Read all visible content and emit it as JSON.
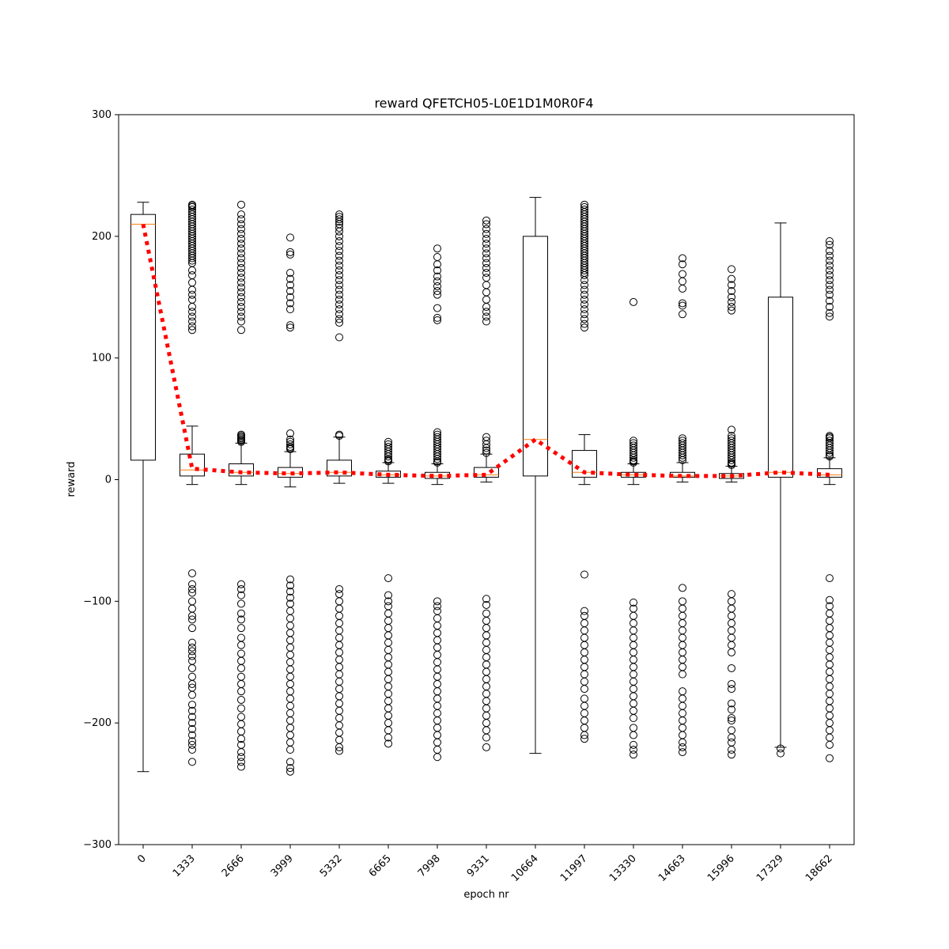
{
  "chart_data": {
    "type": "box",
    "title": "reward QFETCH05-L0E1D1M0R0F4",
    "xlabel": "epoch nr",
    "ylabel": "reward",
    "ylim": [
      -300,
      300
    ],
    "yticks": [
      -300,
      -200,
      -100,
      0,
      100,
      200,
      300
    ],
    "ytick_labels": [
      "−300",
      "−200",
      "−100",
      "0",
      "100",
      "200",
      "300"
    ],
    "categories": [
      "0",
      "1333",
      "2666",
      "3999",
      "5332",
      "6665",
      "7998",
      "9331",
      "10664",
      "11997",
      "13330",
      "14663",
      "15996",
      "17329",
      "18662"
    ],
    "x_tick_rotation": 45,
    "grid": false,
    "colors": {
      "box": "#000000",
      "median": "#ff7f0e",
      "mean_line": "#ff0000",
      "flier": "#000000"
    },
    "boxes": [
      {
        "q1": 16,
        "median": 210,
        "q3": 218,
        "whisker_low": -240,
        "whisker_high": 228,
        "mean": 210,
        "fliers": []
      },
      {
        "q1": 3,
        "median": 8,
        "q3": 21,
        "whisker_low": -4,
        "whisker_high": 44,
        "mean": 9,
        "fliers": [
          226,
          225,
          224,
          222,
          220,
          218,
          216,
          214,
          212,
          210,
          208,
          206,
          204,
          202,
          200,
          198,
          196,
          194,
          192,
          190,
          188,
          186,
          184,
          182,
          180,
          178,
          172,
          168,
          162,
          156,
          152,
          148,
          142,
          138,
          134,
          130,
          126,
          123,
          -77,
          -86,
          -90,
          -93,
          -100,
          -106,
          -112,
          -115,
          -122,
          -134,
          -138,
          -141,
          -145,
          -149,
          -155,
          -162,
          -168,
          -171,
          -177,
          -185,
          -190,
          -195,
          -200,
          -205,
          -210,
          -215,
          -218,
          -222,
          -232
        ]
      },
      {
        "q1": 3,
        "median": 6,
        "q3": 13,
        "whisker_low": -4,
        "whisker_high": 30,
        "mean": 6,
        "fliers": [
          37,
          36,
          35,
          34,
          33,
          32,
          31,
          226,
          218,
          214,
          210,
          206,
          202,
          198,
          194,
          190,
          186,
          182,
          178,
          174,
          170,
          166,
          162,
          158,
          154,
          150,
          146,
          142,
          138,
          134,
          130,
          123,
          -86,
          -90,
          -95,
          -102,
          -110,
          -115,
          -122,
          -130,
          -136,
          -143,
          -149,
          -155,
          -162,
          -168,
          -174,
          -181,
          -188,
          -195,
          -201,
          -207,
          -213,
          -218,
          -224,
          -228,
          -232,
          -236
        ]
      },
      {
        "q1": 2,
        "median": 5,
        "q3": 10,
        "whisker_low": -6,
        "whisker_high": 23,
        "mean": 5,
        "fliers": [
          38,
          33,
          31,
          29,
          27,
          26,
          25,
          199,
          187,
          185,
          170,
          165,
          160,
          155,
          150,
          145,
          140,
          127,
          125,
          -82,
          -87,
          -92,
          -97,
          -102,
          -108,
          -114,
          -120,
          -126,
          -132,
          -138,
          -144,
          -150,
          -156,
          -162,
          -168,
          -174,
          -180,
          -186,
          -192,
          -198,
          -204,
          -210,
          -216,
          -222,
          -232,
          -237,
          -240
        ]
      },
      {
        "q1": 3,
        "median": 6,
        "q3": 16,
        "whisker_low": -3,
        "whisker_high": 35,
        "mean": 6,
        "fliers": [
          37,
          36,
          218,
          216,
          214,
          212,
          210,
          207,
          204,
          200,
          196,
          192,
          188,
          184,
          180,
          176,
          172,
          168,
          164,
          160,
          156,
          152,
          148,
          144,
          140,
          136,
          132,
          129,
          117,
          -90,
          -94,
          -100,
          -106,
          -112,
          -118,
          -124,
          -130,
          -136,
          -142,
          -148,
          -154,
          -160,
          -166,
          -172,
          -178,
          -184,
          -190,
          -196,
          -202,
          -208,
          -214,
          -220,
          -223
        ]
      },
      {
        "q1": 2,
        "median": 4,
        "q3": 7,
        "whisker_low": -3,
        "whisker_high": 14,
        "mean": 4,
        "fliers": [
          31,
          29,
          27,
          25,
          23,
          21,
          19,
          17,
          16,
          15,
          -81,
          -95,
          -100,
          -104,
          -110,
          -116,
          -122,
          -128,
          -134,
          -140,
          -146,
          -152,
          -158,
          -164,
          -170,
          -176,
          -182,
          -188,
          -194,
          -200,
          -206,
          -212,
          -217
        ]
      },
      {
        "q1": 1,
        "median": 3,
        "q3": 6,
        "whisker_low": -4,
        "whisker_high": 13,
        "mean": 3,
        "fliers": [
          39,
          37,
          35,
          33,
          31,
          29,
          27,
          25,
          23,
          21,
          19,
          17,
          15,
          14,
          190,
          183,
          177,
          172,
          167,
          163,
          159,
          155,
          152,
          141,
          133,
          131,
          -100,
          -104,
          -108,
          -114,
          -120,
          -126,
          -132,
          -138,
          -144,
          -150,
          -156,
          -162,
          -168,
          -174,
          -180,
          -186,
          -192,
          -198,
          -204,
          -210,
          -216,
          -222,
          -228
        ]
      },
      {
        "q1": 2,
        "median": 4,
        "q3": 10,
        "whisker_low": -2,
        "whisker_high": 21,
        "mean": 4,
        "fliers": [
          35,
          32,
          29,
          26,
          24,
          22,
          213,
          210,
          206,
          202,
          198,
          194,
          190,
          186,
          182,
          178,
          174,
          170,
          166,
          160,
          154,
          148,
          142,
          138,
          134,
          130,
          -98,
          -103,
          -110,
          -116,
          -122,
          -128,
          -134,
          -140,
          -146,
          -152,
          -158,
          -164,
          -170,
          -176,
          -182,
          -188,
          -194,
          -200,
          -206,
          -212,
          -220
        ]
      },
      {
        "q1": 3,
        "median": 33,
        "q3": 200,
        "whisker_low": -225,
        "whisker_high": 232,
        "mean": 33,
        "fliers": []
      },
      {
        "q1": 2,
        "median": 6,
        "q3": 24,
        "whisker_low": -4,
        "whisker_high": 37,
        "mean": 6,
        "fliers": [
          226,
          224,
          222,
          220,
          218,
          216,
          214,
          212,
          210,
          208,
          206,
          204,
          202,
          200,
          198,
          196,
          194,
          192,
          190,
          188,
          186,
          184,
          182,
          180,
          178,
          176,
          174,
          172,
          170,
          168,
          164,
          160,
          156,
          152,
          148,
          144,
          140,
          136,
          132,
          128,
          125,
          -78,
          -108,
          -112,
          -118,
          -124,
          -130,
          -136,
          -142,
          -148,
          -154,
          -160,
          -166,
          -172,
          -180,
          -186,
          -192,
          -198,
          -204,
          -210,
          -213
        ]
      },
      {
        "q1": 2,
        "median": 4,
        "q3": 6,
        "whisker_low": -4,
        "whisker_high": 13,
        "mean": 4,
        "fliers": [
          32,
          30,
          28,
          26,
          24,
          22,
          20,
          18,
          16,
          15,
          14,
          146,
          -101,
          -106,
          -112,
          -118,
          -124,
          -130,
          -136,
          -142,
          -148,
          -154,
          -160,
          -166,
          -172,
          -178,
          -184,
          -190,
          -196,
          -204,
          -210,
          -218,
          -222,
          -226
        ]
      },
      {
        "q1": 2,
        "median": 3,
        "q3": 6,
        "whisker_low": -2,
        "whisker_high": 14,
        "mean": 3,
        "fliers": [
          34,
          32,
          30,
          28,
          26,
          24,
          22,
          20,
          18,
          16,
          182,
          177,
          169,
          163,
          157,
          145,
          143,
          136,
          -89,
          -100,
          -106,
          -112,
          -118,
          -124,
          -130,
          -136,
          -142,
          -148,
          -154,
          -160,
          -174,
          -180,
          -186,
          -192,
          -198,
          -204,
          -210,
          -216,
          -220,
          -224
        ]
      },
      {
        "q1": 1,
        "median": 3,
        "q3": 5,
        "whisker_low": -2,
        "whisker_high": 11,
        "mean": 3,
        "fliers": [
          41,
          36,
          34,
          32,
          30,
          28,
          26,
          24,
          22,
          20,
          18,
          16,
          14,
          13,
          12,
          173,
          165,
          160,
          155,
          150,
          146,
          142,
          139,
          -94,
          -100,
          -106,
          -112,
          -118,
          -124,
          -130,
          -136,
          -142,
          -155,
          -168,
          -172,
          -184,
          -189,
          -196,
          -198,
          -206,
          -212,
          -216,
          -222,
          -226
        ]
      },
      {
        "q1": 2,
        "median": 6,
        "q3": 150,
        "whisker_low": -220,
        "whisker_high": 211,
        "mean": 6,
        "fliers": [
          -221,
          -225
        ]
      },
      {
        "q1": 2,
        "median": 4,
        "q3": 9,
        "whisker_low": -4,
        "whisker_high": 18,
        "mean": 4,
        "fliers": [
          36,
          35,
          34,
          32,
          30,
          28,
          26,
          24,
          22,
          20,
          19,
          196,
          193,
          188,
          184,
          180,
          176,
          172,
          168,
          164,
          160,
          156,
          152,
          147,
          142,
          137,
          134,
          -81,
          -99,
          -104,
          -110,
          -116,
          -122,
          -128,
          -134,
          -140,
          -146,
          -152,
          -158,
          -164,
          -170,
          -176,
          -182,
          -188,
          -194,
          -200,
          -206,
          -212,
          -218,
          -229
        ]
      }
    ]
  }
}
